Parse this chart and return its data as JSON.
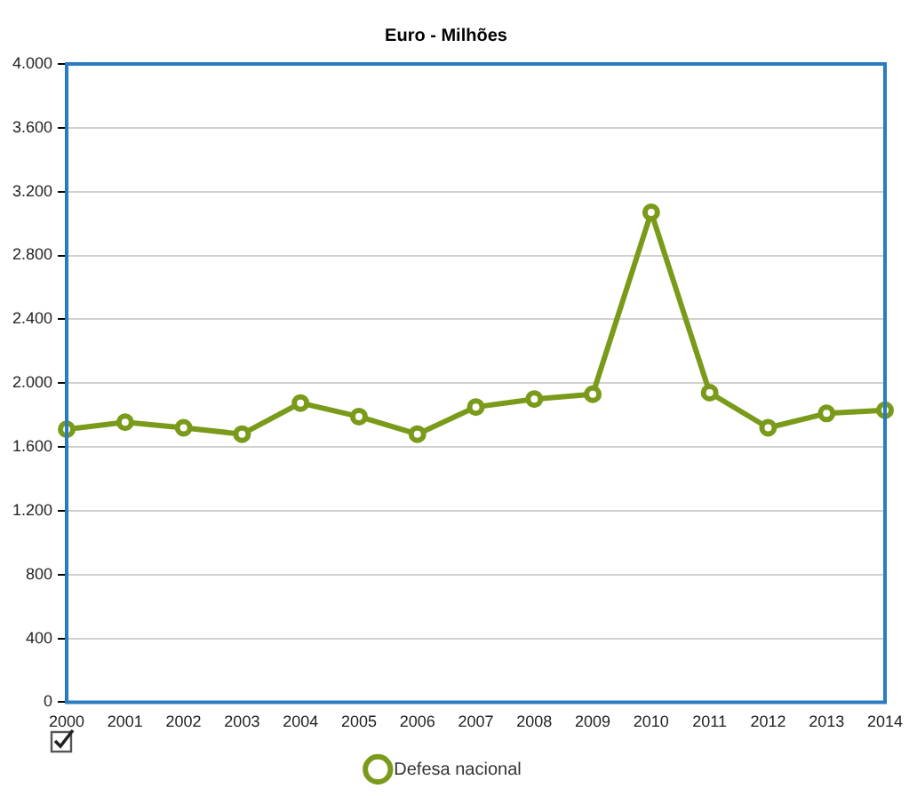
{
  "chart_data": {
    "type": "line",
    "title": "Euro - Milhões",
    "categories": [
      "2000",
      "2001",
      "2002",
      "2003",
      "2004",
      "2005",
      "2006",
      "2007",
      "2008",
      "2009",
      "2010",
      "2011",
      "2012",
      "2013",
      "2014"
    ],
    "series": [
      {
        "name": "Defesa nacional",
        "color": "#7a9a1a",
        "values": [
          1710,
          1755,
          1720,
          1680,
          1875,
          1790,
          1680,
          1850,
          1900,
          1930,
          3070,
          1940,
          1720,
          1810,
          1830
        ]
      }
    ],
    "ylim": [
      0,
      4000
    ],
    "yticks": [
      0,
      400,
      800,
      {
        "value": 1200,
        "label": "1.200"
      },
      {
        "value": 1600,
        "label": "1.600"
      },
      {
        "value": 2000,
        "label": "2.000"
      },
      {
        "value": 2400,
        "label": "2.400"
      },
      {
        "value": 2800,
        "label": "2.800"
      },
      {
        "value": 3200,
        "label": "3.200"
      },
      {
        "value": 3600,
        "label": "3.600"
      },
      {
        "value": 4000,
        "label": "4.000"
      }
    ],
    "grid": "y",
    "legend": "bottom",
    "marker": "circle",
    "line_style": "solid"
  }
}
